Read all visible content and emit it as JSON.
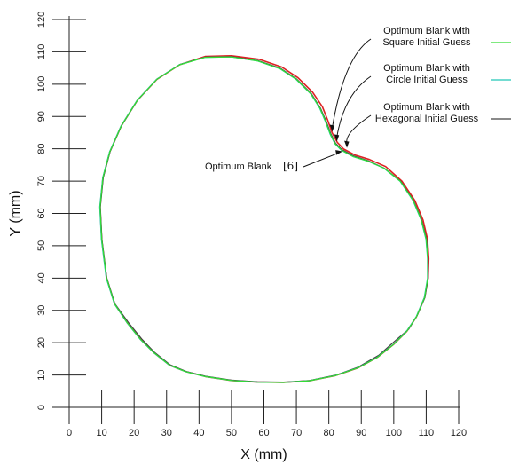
{
  "chart_data": {
    "type": "line",
    "xlabel": "X (mm)",
    "ylabel": "Y (mm)",
    "xlim": [
      0,
      120
    ],
    "ylim": [
      0,
      120
    ],
    "x_ticks": [
      0,
      10,
      20,
      30,
      40,
      50,
      60,
      70,
      80,
      90,
      100,
      110,
      120
    ],
    "y_ticks": [
      0,
      10,
      20,
      30,
      40,
      50,
      60,
      70,
      80,
      90,
      100,
      110,
      120
    ],
    "grid": false,
    "legend_position": "top-right",
    "series": [
      {
        "name": "Optimum Blank with Square Initial Guess",
        "legend_lines": [
          "Optimum Blank with",
          "Square Initial Guess"
        ],
        "color": "#33dd33",
        "points": [
          [
            9.5,
            62
          ],
          [
            10,
            52
          ],
          [
            11.5,
            40
          ],
          [
            14,
            32
          ],
          [
            18,
            26
          ],
          [
            22,
            21
          ],
          [
            26,
            17
          ],
          [
            31,
            13
          ],
          [
            36,
            11
          ],
          [
            42,
            9.5
          ],
          [
            50,
            8.3
          ],
          [
            58,
            7.8
          ],
          [
            66,
            7.7
          ],
          [
            74,
            8.2
          ],
          [
            82,
            9.8
          ],
          [
            89,
            12.2
          ],
          [
            95,
            15.5
          ],
          [
            100,
            19.5
          ],
          [
            104,
            23.5
          ],
          [
            107,
            28
          ],
          [
            109.5,
            34
          ],
          [
            110.5,
            40
          ],
          [
            110.5,
            46
          ],
          [
            110,
            52
          ],
          [
            108.5,
            58
          ],
          [
            106,
            64
          ],
          [
            102,
            70
          ],
          [
            97,
            74
          ],
          [
            92,
            76.2
          ],
          [
            87.5,
            77.6
          ],
          [
            84,
            79.5
          ],
          [
            82,
            81.5
          ],
          [
            80.5,
            84.5
          ],
          [
            79,
            88.5
          ],
          [
            77.3,
            92.5
          ],
          [
            74.5,
            97
          ],
          [
            70,
            101.5
          ],
          [
            65,
            104.8
          ],
          [
            58,
            107.2
          ],
          [
            50,
            108.4
          ],
          [
            42,
            108.3
          ],
          [
            34,
            106
          ],
          [
            27,
            101.5
          ],
          [
            21,
            95
          ],
          [
            16,
            87
          ],
          [
            12.5,
            79
          ],
          [
            10.4,
            71
          ],
          [
            9.5,
            62
          ]
        ]
      },
      {
        "name": "Optimum Blank with Circle Initial Guess",
        "legend_lines": [
          "Optimum Blank with",
          "Circle Initial Guess"
        ],
        "color": "#22c7b8",
        "points": [
          [
            9.4,
            62
          ],
          [
            9.9,
            52
          ],
          [
            11.4,
            40
          ],
          [
            13.9,
            32
          ],
          [
            17.9,
            26
          ],
          [
            21.9,
            21
          ],
          [
            25.9,
            17
          ],
          [
            30.9,
            13
          ],
          [
            35.9,
            11
          ],
          [
            41.9,
            9.5
          ],
          [
            49.9,
            8.3
          ],
          [
            57.9,
            7.8
          ],
          [
            65.9,
            7.7
          ],
          [
            73.9,
            8.2
          ],
          [
            81.9,
            9.8
          ],
          [
            88.9,
            12.2
          ],
          [
            94.9,
            15.5
          ],
          [
            99.9,
            19.5
          ],
          [
            103.9,
            23.5
          ],
          [
            106.9,
            28
          ],
          [
            109.4,
            34
          ],
          [
            110.4,
            40
          ],
          [
            110.4,
            46
          ],
          [
            109.9,
            52
          ],
          [
            108.4,
            58
          ],
          [
            105.9,
            64
          ],
          [
            101.9,
            70
          ],
          [
            96.9,
            74
          ],
          [
            91.9,
            76.2
          ],
          [
            87.4,
            77.6
          ],
          [
            83.9,
            79.5
          ],
          [
            81.9,
            81.5
          ],
          [
            80.4,
            84.5
          ],
          [
            78.9,
            88.5
          ],
          [
            77.2,
            92.5
          ],
          [
            74.4,
            97
          ],
          [
            69.9,
            101.5
          ],
          [
            64.9,
            104.8
          ],
          [
            57.9,
            107.2
          ],
          [
            49.9,
            108.4
          ],
          [
            41.9,
            108.3
          ],
          [
            33.9,
            106
          ],
          [
            26.9,
            101.5
          ],
          [
            20.9,
            95
          ],
          [
            15.9,
            87
          ],
          [
            12.4,
            79
          ],
          [
            10.3,
            71
          ],
          [
            9.4,
            62
          ]
        ]
      },
      {
        "name": "Optimum Blank with Hexagonal Initial Guess",
        "legend_lines": [
          "Optimum Blank with",
          "Hexagonal Initial Guess"
        ],
        "color": "#444444",
        "points": [
          [
            9.6,
            62
          ],
          [
            10.1,
            52
          ],
          [
            11.6,
            40
          ],
          [
            14.1,
            32
          ],
          [
            18.2,
            26.3
          ],
          [
            22.3,
            21.2
          ],
          [
            26.2,
            17.1
          ],
          [
            31,
            13.2
          ],
          [
            36,
            11.1
          ],
          [
            42,
            9.6
          ],
          [
            50,
            8.4
          ],
          [
            58,
            7.9
          ],
          [
            66,
            7.8
          ],
          [
            74,
            8.3
          ],
          [
            82,
            9.9
          ],
          [
            89,
            12.4
          ],
          [
            95.5,
            16.2
          ],
          [
            100,
            20.2
          ],
          [
            104.6,
            24.2
          ],
          [
            107.2,
            28.4
          ],
          [
            109.6,
            34
          ],
          [
            110.6,
            40
          ],
          [
            110.6,
            46
          ],
          [
            110.1,
            52
          ],
          [
            108.6,
            58
          ],
          [
            106.1,
            64
          ],
          [
            102.1,
            70
          ],
          [
            97.1,
            74
          ],
          [
            92.1,
            76.3
          ],
          [
            87.6,
            77.8
          ],
          [
            84.1,
            79.7
          ],
          [
            82.1,
            81.7
          ],
          [
            80.6,
            84.7
          ],
          [
            79.1,
            88.7
          ],
          [
            77.4,
            92.6
          ],
          [
            74.6,
            97.1
          ],
          [
            70.1,
            101.6
          ],
          [
            65.1,
            104.9
          ],
          [
            58.1,
            107.3
          ],
          [
            50.1,
            108.5
          ],
          [
            42.1,
            108.4
          ],
          [
            34.1,
            106.1
          ],
          [
            27.1,
            101.6
          ],
          [
            21.1,
            95.1
          ],
          [
            16.1,
            87.1
          ],
          [
            12.6,
            79.1
          ],
          [
            10.5,
            71
          ],
          [
            9.6,
            62
          ]
        ]
      },
      {
        "name": "Optimum Blank [6]",
        "color": "#dd2222",
        "points": [
          [
            9.5,
            62
          ],
          [
            10,
            52
          ],
          [
            11.5,
            40
          ],
          [
            14,
            32
          ],
          [
            18,
            26
          ],
          [
            22,
            21
          ],
          [
            26,
            17
          ],
          [
            31,
            13
          ],
          [
            36,
            11
          ],
          [
            42,
            9.5
          ],
          [
            50,
            8.3
          ],
          [
            58,
            7.8
          ],
          [
            66,
            7.7
          ],
          [
            74,
            8.2
          ],
          [
            82,
            9.8
          ],
          [
            89,
            12.2
          ],
          [
            95,
            15.5
          ],
          [
            100,
            19.5
          ],
          [
            104,
            23.5
          ],
          [
            107,
            28
          ],
          [
            109.5,
            34
          ],
          [
            110.6,
            40
          ],
          [
            110.8,
            46
          ],
          [
            110.4,
            52
          ],
          [
            109,
            58
          ],
          [
            106.5,
            64
          ],
          [
            102.5,
            70
          ],
          [
            97.5,
            74.5
          ],
          [
            92.5,
            76.7
          ],
          [
            88,
            78.1
          ],
          [
            84.6,
            79.9
          ],
          [
            82.6,
            82
          ],
          [
            81,
            85
          ],
          [
            79.6,
            89
          ],
          [
            78,
            93
          ],
          [
            75,
            97.5
          ],
          [
            70.5,
            102
          ],
          [
            65.5,
            105.3
          ],
          [
            58.5,
            107.7
          ],
          [
            50,
            108.8
          ],
          [
            42,
            108.6
          ],
          [
            34,
            106
          ],
          [
            27,
            101.5
          ],
          [
            21,
            95
          ],
          [
            16,
            87
          ],
          [
            12.5,
            79
          ],
          [
            10.4,
            71
          ],
          [
            9.5,
            62
          ]
        ]
      }
    ],
    "annotations": [
      {
        "label": "Optimum Blank",
        "ref": "[6]",
        "target": [
          84.5,
          79.2
        ]
      }
    ]
  }
}
